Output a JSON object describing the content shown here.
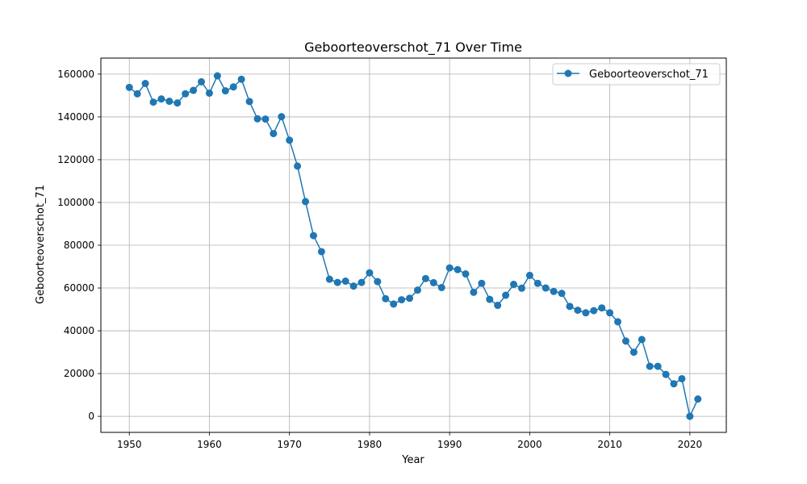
{
  "chart_data": {
    "type": "line",
    "title": "Geboorteoverschot_71 Over Time",
    "xlabel": "Year",
    "ylabel": "Geboorteoverschot_71",
    "xlim": [
      1946.45,
      2024.55
    ],
    "ylim": [
      -7500,
      167500
    ],
    "xticks": [
      1950,
      1960,
      1970,
      1980,
      1990,
      2000,
      2010,
      2020
    ],
    "yticks": [
      0,
      20000,
      40000,
      60000,
      80000,
      100000,
      120000,
      140000,
      160000
    ],
    "grid": true,
    "legend_position": "top-right",
    "series": [
      {
        "name": "Geboorteoverschot_71",
        "color": "#1f77b4",
        "marker": "circle",
        "x": [
          1950,
          1951,
          1952,
          1953,
          1954,
          1955,
          1956,
          1957,
          1958,
          1959,
          1960,
          1961,
          1962,
          1963,
          1964,
          1965,
          1966,
          1967,
          1968,
          1969,
          1970,
          1971,
          1972,
          1973,
          1974,
          1975,
          1976,
          1977,
          1978,
          1979,
          1980,
          1981,
          1982,
          1983,
          1984,
          1985,
          1986,
          1987,
          1988,
          1989,
          1990,
          1991,
          1992,
          1993,
          1994,
          1995,
          1996,
          1997,
          1998,
          1999,
          2000,
          2001,
          2002,
          2003,
          2004,
          2005,
          2006,
          2007,
          2008,
          2009,
          2010,
          2011,
          2012,
          2013,
          2014,
          2015,
          2016,
          2017,
          2018,
          2019,
          2020,
          2021
        ],
        "y": [
          153800,
          150800,
          155600,
          146900,
          148400,
          147300,
          146500,
          150800,
          152400,
          156400,
          151100,
          159200,
          152200,
          154000,
          157600,
          147200,
          139100,
          139000,
          132200,
          140100,
          129100,
          117000,
          100400,
          84500,
          77000,
          64100,
          62600,
          63200,
          60900,
          62600,
          67100,
          63000,
          55000,
          52500,
          54500,
          55200,
          59000,
          64400,
          62500,
          60200,
          69400,
          68600,
          66600,
          58000,
          62200,
          54700,
          51900,
          56600,
          61700,
          59900,
          65900,
          62200,
          60000,
          58400,
          57500,
          51400,
          49600,
          48400,
          49400,
          50700,
          48400,
          44200,
          35200,
          30000,
          35900,
          23400,
          23400,
          19600,
          15200,
          17600,
          0,
          8100
        ]
      }
    ]
  }
}
